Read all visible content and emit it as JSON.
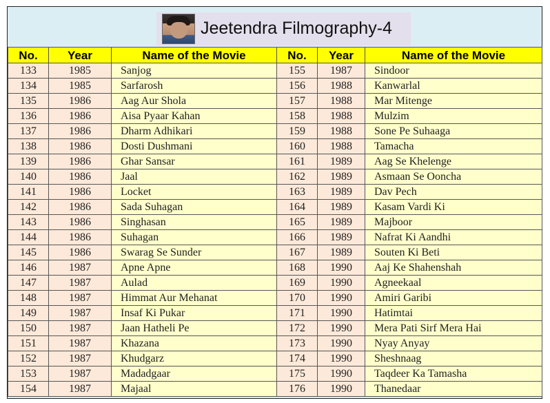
{
  "title": "Jeetendra Filmography-4",
  "headers": {
    "no": "No.",
    "year": "Year",
    "name": "Name of the Movie"
  },
  "left_rows": [
    {
      "no": "133",
      "year": "1985",
      "name": "Sanjog"
    },
    {
      "no": "134",
      "year": "1985",
      "name": "Sarfarosh"
    },
    {
      "no": "135",
      "year": "1986",
      "name": "Aag Aur Shola"
    },
    {
      "no": "136",
      "year": "1986",
      "name": "Aisa Pyaar Kahan"
    },
    {
      "no": "137",
      "year": "1986",
      "name": "Dharm Adhikari"
    },
    {
      "no": "138",
      "year": "1986",
      "name": "Dosti Dushmani"
    },
    {
      "no": "139",
      "year": "1986",
      "name": "Ghar Sansar"
    },
    {
      "no": "140",
      "year": "1986",
      "name": "Jaal"
    },
    {
      "no": "141",
      "year": "1986",
      "name": "Locket"
    },
    {
      "no": "142",
      "year": "1986",
      "name": "Sada Suhagan"
    },
    {
      "no": "143",
      "year": "1986",
      "name": "Singhasan"
    },
    {
      "no": "144",
      "year": "1986",
      "name": "Suhagan"
    },
    {
      "no": "145",
      "year": "1986",
      "name": "Swarag Se Sunder"
    },
    {
      "no": "146",
      "year": "1987",
      "name": "Apne Apne"
    },
    {
      "no": "147",
      "year": "1987",
      "name": "Aulad"
    },
    {
      "no": "148",
      "year": "1987",
      "name": "Himmat Aur Mehanat"
    },
    {
      "no": "149",
      "year": "1987",
      "name": "Insaf Ki Pukar"
    },
    {
      "no": "150",
      "year": "1987",
      "name": "Jaan Hatheli Pe"
    },
    {
      "no": "151",
      "year": "1987",
      "name": "Khazana"
    },
    {
      "no": "152",
      "year": "1987",
      "name": "Khudgarz"
    },
    {
      "no": "153",
      "year": "1987",
      "name": "Madadgaar"
    },
    {
      "no": "154",
      "year": "1987",
      "name": "Majaal"
    }
  ],
  "right_rows": [
    {
      "no": "155",
      "year": "1987",
      "name": "Sindoor"
    },
    {
      "no": "156",
      "year": "1988",
      "name": "Kanwarlal"
    },
    {
      "no": "157",
      "year": "1988",
      "name": "Mar Mitenge"
    },
    {
      "no": "158",
      "year": "1988",
      "name": "Mulzim"
    },
    {
      "no": "159",
      "year": "1988",
      "name": "Sone Pe Suhaaga"
    },
    {
      "no": "160",
      "year": "1988",
      "name": "Tamacha"
    },
    {
      "no": "161",
      "year": "1989",
      "name": "Aag Se Khelenge"
    },
    {
      "no": "162",
      "year": "1989",
      "name": "Asmaan Se Ooncha"
    },
    {
      "no": "163",
      "year": "1989",
      "name": "Dav Pech"
    },
    {
      "no": "164",
      "year": "1989",
      "name": "Kasam Vardi Ki"
    },
    {
      "no": "165",
      "year": "1989",
      "name": "Majboor"
    },
    {
      "no": "166",
      "year": "1989",
      "name": "Nafrat Ki Aandhi"
    },
    {
      "no": "167",
      "year": "1989",
      "name": "Souten Ki Beti"
    },
    {
      "no": "168",
      "year": "1990",
      "name": "Aaj Ke Shahenshah"
    },
    {
      "no": "169",
      "year": "1990",
      "name": "Agneekaal"
    },
    {
      "no": "170",
      "year": "1990",
      "name": "Amiri Garibi"
    },
    {
      "no": "171",
      "year": "1990",
      "name": "Hatimtai"
    },
    {
      "no": "172",
      "year": "1990",
      "name": "Mera Pati Sirf Mera Hai"
    },
    {
      "no": "173",
      "year": "1990",
      "name": "Nyay Anyay"
    },
    {
      "no": "174",
      "year": "1990",
      "name": "Sheshnaag"
    },
    {
      "no": "175",
      "year": "1990",
      "name": "Taqdeer Ka Tamasha"
    },
    {
      "no": "176",
      "year": "1990",
      "name": "Thanedaar"
    }
  ],
  "colors": {
    "header_bg": "#ffff00",
    "number_bg": "#fde9d9",
    "name_bg": "#ffffcc",
    "banner_bg": "#dbeef3",
    "title_box_bg": "#e4dfec"
  },
  "portrait_icon": "actor-portrait"
}
